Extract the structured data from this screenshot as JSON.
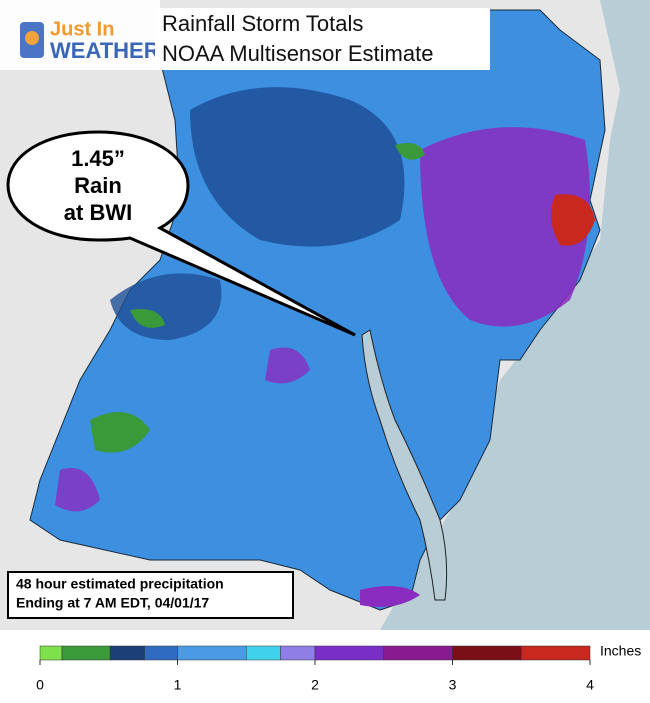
{
  "logo": {
    "line1": "Just In",
    "line2": "WEATHER"
  },
  "header": {
    "title": "Rainfall Storm Totals",
    "subtitle": "NOAA Multisensor Estimate"
  },
  "callout": {
    "lines": [
      "1.45”",
      "Rain",
      "at BWI"
    ]
  },
  "info_box": {
    "lines": [
      "48 hour estimated precipitation",
      "Ending at  7 AM EDT, 04/01/17"
    ]
  },
  "legend": {
    "unit": "Inches",
    "ticks": [
      0,
      1,
      2,
      3,
      4
    ],
    "bins": [
      0,
      0.16,
      0.51,
      0.76,
      1,
      1.5,
      1.75,
      2,
      2.5,
      3,
      3.5,
      4
    ],
    "colors": [
      "#7ee04a",
      "#3a9a3a",
      "#1d3f78",
      "#2f6cc0",
      "#4a9ae6",
      "#3fd2ea",
      "#8f7ee6",
      "#7a2ec8",
      "#8a1a90",
      "#7a0f18",
      "#c8281e"
    ]
  }
}
